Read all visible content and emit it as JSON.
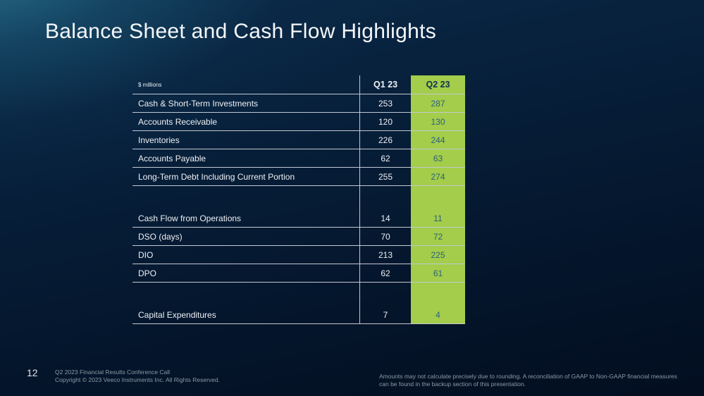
{
  "slide": {
    "title": "Balance Sheet and Cash Flow Highlights",
    "page_number": "12"
  },
  "table": {
    "unit_label": "$ millions",
    "q1_header": "Q1 23",
    "q2_header": "Q2 23",
    "rows": [
      {
        "label": "Cash & Short-Term Investments",
        "q1": "253",
        "q2": "287",
        "spacer": false
      },
      {
        "label": "Accounts Receivable",
        "q1": "120",
        "q2": "130",
        "spacer": false
      },
      {
        "label": "Inventories",
        "q1": "226",
        "q2": "244",
        "spacer": false
      },
      {
        "label": "Accounts Payable",
        "q1": "62",
        "q2": "63",
        "spacer": false
      },
      {
        "label": "Long-Term Debt Including Current Portion",
        "q1": "255",
        "q2": "274",
        "spacer": false
      },
      {
        "label": "",
        "q1": "",
        "q2": "",
        "spacer": true
      },
      {
        "label": "Cash Flow from Operations",
        "q1": "14",
        "q2": "11",
        "spacer": false
      },
      {
        "label": "DSO (days)",
        "q1": "70",
        "q2": "72",
        "spacer": false
      },
      {
        "label": "DIO",
        "q1": "213",
        "q2": "225",
        "spacer": false
      },
      {
        "label": "DPO",
        "q1": "62",
        "q2": "61",
        "spacer": false
      },
      {
        "label": "",
        "q1": "",
        "q2": "",
        "spacer": true
      },
      {
        "label": "Capital Expenditures",
        "q1": "7",
        "q2": "4",
        "spacer": false
      }
    ]
  },
  "footer": {
    "left_line1": "Q2 2023 Financial Results Conference Call",
    "left_line2": "Copyright © 2023 Veeco Instruments Inc. All Rights Reserved.",
    "right_note": "Amounts may not calculate precisely due to rounding.  A reconciliation of GAAP to Non-GAAP financial measures can be found in the backup section of this presentation."
  },
  "colors": {
    "accent_green": "#a3cd4a",
    "background_navy": "#06203d",
    "q2_value_text": "#2e5f7e"
  }
}
